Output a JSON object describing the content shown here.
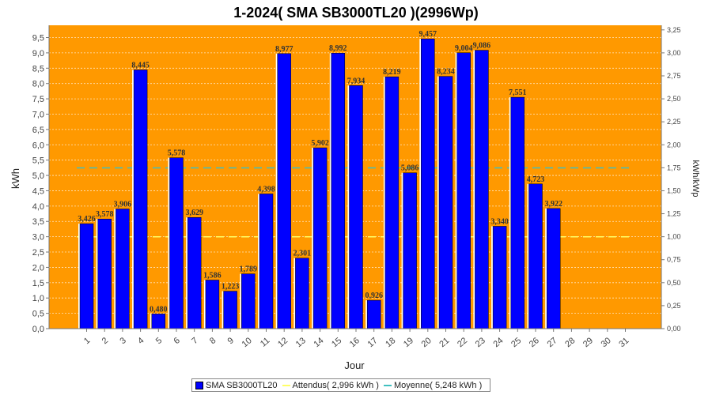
{
  "chart_data": {
    "type": "bar",
    "title": "1-2024( SMA SB3000TL20 )(2996Wp)",
    "xlabel": "Jour",
    "ylabel": "kWh",
    "y2label": "kWh/kWp",
    "ylim": [
      0,
      9.9
    ],
    "y2lim": [
      0,
      3.3
    ],
    "yticks": [
      "0,0",
      "0,5",
      "1,0",
      "1,5",
      "2,0",
      "2,5",
      "3,0",
      "3,5",
      "4,0",
      "4,5",
      "5,0",
      "5,5",
      "6,0",
      "6,5",
      "7,0",
      "7,5",
      "8,0",
      "8,5",
      "9,0",
      "9,5"
    ],
    "y2ticks": [
      "0,00",
      "0,25",
      "0,50",
      "0,75",
      "1,00",
      "1,25",
      "1,50",
      "1,75",
      "2,00",
      "2,25",
      "2,50",
      "2,75",
      "3,00",
      "3,25"
    ],
    "categories": [
      "1",
      "2",
      "3",
      "4",
      "5",
      "6",
      "7",
      "8",
      "9",
      "10",
      "11",
      "12",
      "13",
      "14",
      "15",
      "16",
      "17",
      "18",
      "19",
      "20",
      "21",
      "22",
      "23",
      "24",
      "25",
      "26",
      "27",
      "28",
      "29",
      "30",
      "31"
    ],
    "series": [
      {
        "name": "SMA SB3000TL20",
        "color": "#0000ff",
        "values": [
          3.426,
          3.578,
          3.906,
          8.445,
          0.48,
          5.578,
          3.629,
          1.586,
          1.223,
          1.789,
          4.398,
          8.977,
          2.301,
          5.902,
          8.992,
          7.934,
          0.926,
          8.219,
          5.086,
          9.457,
          8.234,
          9.004,
          9.086,
          3.34,
          7.551,
          4.723,
          3.922,
          null,
          null,
          null,
          null
        ],
        "labels": [
          "3,426",
          "3,578",
          "3,906",
          "8,445",
          "0,480",
          "5,578",
          "3,629",
          "1,586",
          "1,223",
          "1,789",
          "4,398",
          "8,977",
          "2,301",
          "5,902",
          "8,992",
          "7,934",
          "0,926",
          "8,219",
          "5,086",
          "9,457",
          "8,234",
          "9,004",
          "9,086",
          "3,340",
          "7,551",
          "4,723",
          "3,922",
          "",
          "",
          "",
          ""
        ]
      }
    ],
    "reference_lines": [
      {
        "name": "Attendus",
        "value": 2.996,
        "color": "#ffff66",
        "legend": "Attendus( 2,996 kWh )"
      },
      {
        "name": "Moyenne",
        "value": 5.248,
        "color": "#40c0c0",
        "legend": "Moyenne( 5,248 kWh )"
      }
    ],
    "background": "#ff9900",
    "grid": true,
    "legend_position": "bottom"
  }
}
